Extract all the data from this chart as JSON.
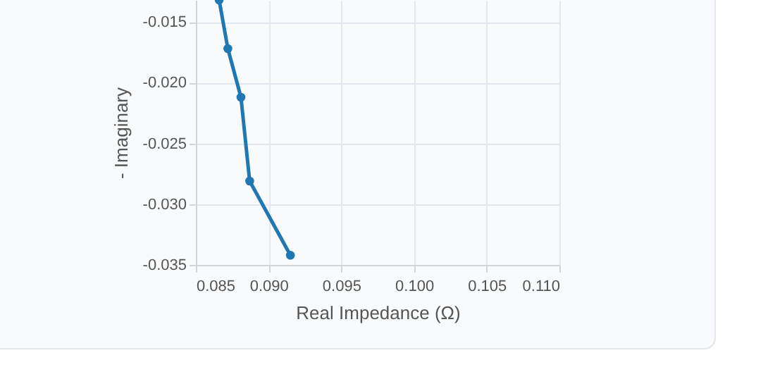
{
  "chart_data": {
    "type": "line",
    "xlabel": "Real Impedance (Ω)",
    "ylabel": "- Imaginary",
    "x": [
      0.0866,
      0.0872,
      0.0881,
      0.0887,
      0.0915
    ],
    "series": [
      {
        "color": "#1f77b4",
        "values": [
          -0.0132,
          -0.0172,
          -0.0212,
          -0.0281,
          -0.0342
        ]
      }
    ],
    "xlim": [
      0.085,
      0.11
    ],
    "xticks": [
      0.085,
      {
        "value": 0.09,
        "label": "0.090"
      },
      0.095,
      {
        "value": 0.1,
        "label": "0.100"
      },
      0.105,
      {
        "value": 0.11,
        "label": "0.110"
      }
    ],
    "ylim": [
      -0.035,
      -0.0132
    ],
    "yticks": [
      -0.015,
      {
        "value": -0.02,
        "label": "-0.020"
      },
      -0.025,
      {
        "value": -0.03,
        "label": "-0.030"
      },
      -0.035
    ],
    "grid": true,
    "marker": "circle",
    "line_style": "solid"
  }
}
